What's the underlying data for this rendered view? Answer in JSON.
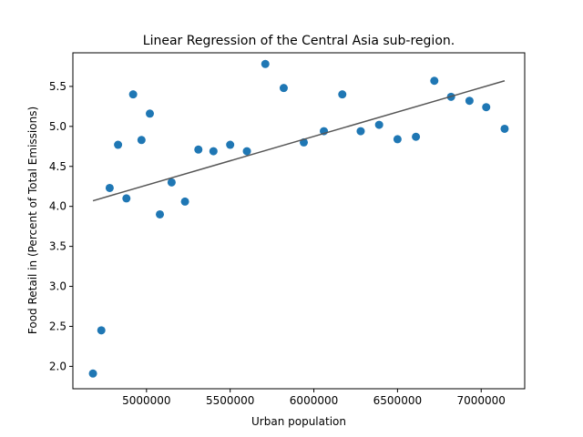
{
  "chart_data": {
    "type": "scatter",
    "title": "Linear Regression of the Central Asia sub-region.",
    "xlabel": "Urban population",
    "ylabel": "Food Retail in (Percent of Total Emissions)",
    "xlim": [
      4560000,
      7260000
    ],
    "ylim": [
      1.72,
      5.92
    ],
    "xticks": [
      5000000,
      5500000,
      6000000,
      6500000,
      7000000
    ],
    "xtick_labels": [
      "5000000",
      "5500000",
      "6000000",
      "6500000",
      "7000000"
    ],
    "yticks": [
      2.0,
      2.5,
      3.0,
      3.5,
      4.0,
      4.5,
      5.0,
      5.5
    ],
    "ytick_labels": [
      "2.0",
      "2.5",
      "3.0",
      "3.5",
      "4.0",
      "4.5",
      "5.0",
      "5.5"
    ],
    "grid": false,
    "colors": {
      "points": "#1f77b4",
      "regression_line": "#555555"
    },
    "points": [
      {
        "x": 4680000,
        "y": 1.91
      },
      {
        "x": 4730000,
        "y": 2.45
      },
      {
        "x": 4780000,
        "y": 4.23
      },
      {
        "x": 4830000,
        "y": 4.77
      },
      {
        "x": 4880000,
        "y": 4.1
      },
      {
        "x": 4920000,
        "y": 5.4
      },
      {
        "x": 4970000,
        "y": 4.83
      },
      {
        "x": 5020000,
        "y": 5.16
      },
      {
        "x": 5080000,
        "y": 3.9
      },
      {
        "x": 5150000,
        "y": 4.3
      },
      {
        "x": 5230000,
        "y": 4.06
      },
      {
        "x": 5310000,
        "y": 4.71
      },
      {
        "x": 5400000,
        "y": 4.69
      },
      {
        "x": 5500000,
        "y": 4.77
      },
      {
        "x": 5600000,
        "y": 4.69
      },
      {
        "x": 5710000,
        "y": 5.78
      },
      {
        "x": 5820000,
        "y": 5.48
      },
      {
        "x": 5940000,
        "y": 4.8
      },
      {
        "x": 6060000,
        "y": 4.94
      },
      {
        "x": 6170000,
        "y": 5.4
      },
      {
        "x": 6280000,
        "y": 4.94
      },
      {
        "x": 6390000,
        "y": 5.02
      },
      {
        "x": 6500000,
        "y": 4.84
      },
      {
        "x": 6610000,
        "y": 4.87
      },
      {
        "x": 6720000,
        "y": 5.57
      },
      {
        "x": 6820000,
        "y": 5.37
      },
      {
        "x": 6930000,
        "y": 5.32
      },
      {
        "x": 7030000,
        "y": 5.24
      },
      {
        "x": 7140000,
        "y": 4.97
      }
    ],
    "regression_line": [
      {
        "x": 4680000,
        "y": 4.07
      },
      {
        "x": 7140000,
        "y": 5.57
      }
    ]
  }
}
